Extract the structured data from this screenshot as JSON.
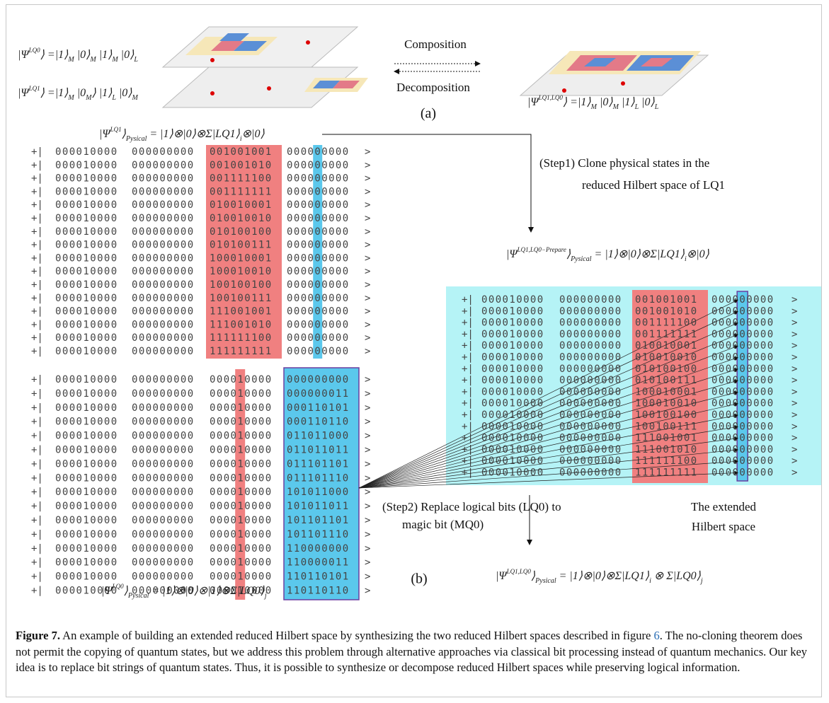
{
  "panel_a": {
    "state_lq0": [
      {
        "text": "|Ψ"
      },
      {
        "sup": "LQ0"
      },
      {
        "text": "⟩ =|1⟩"
      },
      {
        "sub": "M"
      },
      {
        "text": " |0⟩"
      },
      {
        "sub": "M"
      },
      {
        "text": " |1⟩"
      },
      {
        "sub": "M"
      },
      {
        "text": " |0⟩"
      },
      {
        "sub": "L"
      }
    ],
    "state_lq1": [
      {
        "text": "|Ψ"
      },
      {
        "sup": "LQ1"
      },
      {
        "text": "⟩ =|1⟩"
      },
      {
        "sub": "M"
      },
      {
        "text": " |0"
      },
      {
        "sub": "M"
      },
      {
        "text": "⟩ |1⟩"
      },
      {
        "sub": "L"
      },
      {
        "text": " |0⟩"
      },
      {
        "sub": "M"
      }
    ],
    "state_combined": [
      {
        "text": "|Ψ"
      },
      {
        "sup": "LQ1,LQ0"
      },
      {
        "text": "⟩ =|1⟩"
      },
      {
        "sub": "M"
      },
      {
        "text": " |0⟩"
      },
      {
        "sub": "M"
      },
      {
        "text": " |1⟩"
      },
      {
        "sub": "L"
      },
      {
        "text": " |0⟩"
      },
      {
        "sub": "L"
      }
    ],
    "composition": "Composition",
    "decomposition": "Decomposition",
    "label": "(a)"
  },
  "panel_b": {
    "state_lq1_physical": [
      {
        "text": "|Ψ"
      },
      {
        "sup": "LQ1"
      },
      {
        "text": "⟩"
      },
      {
        "sub": "Pysical"
      },
      {
        "text": " = |1⟩⊗|0⟩⊗Σ|LQ1⟩"
      },
      {
        "sub": "i"
      },
      {
        "text": "⊗|0⟩"
      }
    ],
    "step1": [
      "(Step1) Clone physical states in the",
      "reduced Hilbert space of LQ1"
    ],
    "state_prepare": [
      {
        "text": "|Ψ"
      },
      {
        "sup": "LQ1,LQ0−Prepare"
      },
      {
        "text": "⟩"
      },
      {
        "sub": "Pysical"
      },
      {
        "text": " = |1⟩⊗|0⟩⊗Σ|LQ1⟩"
      },
      {
        "sub": "i"
      },
      {
        "text": "⊗|0⟩"
      }
    ],
    "table_lq1": {
      "rows": [
        [
          "+|",
          "000010000",
          "000000000",
          "001001001",
          "000000000",
          ">"
        ],
        [
          "+|",
          "000010000",
          "000000000",
          "001001010",
          "000000000",
          ">"
        ],
        [
          "+|",
          "000010000",
          "000000000",
          "001111100",
          "000000000",
          ">"
        ],
        [
          "+|",
          "000010000",
          "000000000",
          "001111111",
          "000000000",
          ">"
        ],
        [
          "+|",
          "000010000",
          "000000000",
          "010010001",
          "000000000",
          ">"
        ],
        [
          "+|",
          "000010000",
          "000000000",
          "010010010",
          "000000000",
          ">"
        ],
        [
          "+|",
          "000010000",
          "000000000",
          "010100100",
          "000000000",
          ">"
        ],
        [
          "+|",
          "000010000",
          "000000000",
          "010100111",
          "000000000",
          ">"
        ],
        [
          "+|",
          "000010000",
          "000000000",
          "100010001",
          "000000000",
          ">"
        ],
        [
          "+|",
          "000010000",
          "000000000",
          "100010010",
          "000000000",
          ">"
        ],
        [
          "+|",
          "000010000",
          "000000000",
          "100100100",
          "000000000",
          ">"
        ],
        [
          "+|",
          "000010000",
          "000000000",
          "100100111",
          "000000000",
          ">"
        ],
        [
          "+|",
          "000010000",
          "000000000",
          "111001001",
          "000000000",
          ">"
        ],
        [
          "+|",
          "000010000",
          "000000000",
          "111001010",
          "000000000",
          ">"
        ],
        [
          "+|",
          "000010000",
          "000000000",
          "111111100",
          "000000000",
          ">"
        ],
        [
          "+|",
          "000010000",
          "000000000",
          "111111111",
          "000000000",
          ">"
        ]
      ]
    },
    "table_lq0": {
      "rows": [
        [
          "+|",
          "000010000",
          "000000000",
          "000010000",
          "000000000",
          ">"
        ],
        [
          "+|",
          "000010000",
          "000000000",
          "000010000",
          "000000011",
          ">"
        ],
        [
          "+|",
          "000010000",
          "000000000",
          "000010000",
          "000110101",
          ">"
        ],
        [
          "+|",
          "000010000",
          "000000000",
          "000010000",
          "000110110",
          ">"
        ],
        [
          "+|",
          "000010000",
          "000000000",
          "000010000",
          "011011000",
          ">"
        ],
        [
          "+|",
          "000010000",
          "000000000",
          "000010000",
          "011011011",
          ">"
        ],
        [
          "+|",
          "000010000",
          "000000000",
          "000010000",
          "011101101",
          ">"
        ],
        [
          "+|",
          "000010000",
          "000000000",
          "000010000",
          "011101110",
          ">"
        ],
        [
          "+|",
          "000010000",
          "000000000",
          "000010000",
          "101011000",
          ">"
        ],
        [
          "+|",
          "000010000",
          "000000000",
          "000010000",
          "101011011",
          ">"
        ],
        [
          "+|",
          "000010000",
          "000000000",
          "000010000",
          "101101101",
          ">"
        ],
        [
          "+|",
          "000010000",
          "000000000",
          "000010000",
          "101101110",
          ">"
        ],
        [
          "+|",
          "000010000",
          "000000000",
          "000010000",
          "110000000",
          ">"
        ],
        [
          "+|",
          "000010000",
          "000000000",
          "000010000",
          "110000011",
          ">"
        ],
        [
          "+|",
          "000010000",
          "000000000",
          "000010000",
          "110110101",
          ">"
        ],
        [
          "+|",
          "000010000",
          "000000000",
          "000010000",
          "110110110",
          ">"
        ]
      ]
    },
    "table_prepare": {
      "rows": [
        [
          "+|",
          "000010000",
          "000000000",
          "001001001",
          "000000000",
          ">"
        ],
        [
          "+|",
          "000010000",
          "000000000",
          "001001010",
          "000000000",
          ">"
        ],
        [
          "+|",
          "000010000",
          "000000000",
          "001111100",
          "000000000",
          ">"
        ],
        [
          "+|",
          "000010000",
          "000000000",
          "001111111",
          "000000000",
          ">"
        ],
        [
          "+|",
          "000010000",
          "000000000",
          "010010001",
          "000000000",
          ">"
        ],
        [
          "+|",
          "000010000",
          "000000000",
          "010010010",
          "000000000",
          ">"
        ],
        [
          "+|",
          "000010000",
          "000000000",
          "010100100",
          "000000000",
          ">"
        ],
        [
          "+|",
          "000010000",
          "000000000",
          "010100111",
          "000000000",
          ">"
        ],
        [
          "+|",
          "000010000",
          "000000000",
          "100010001",
          "000000000",
          ">"
        ],
        [
          "+|",
          "000010000",
          "000000000",
          "100010010",
          "000000000",
          ">"
        ],
        [
          "+|",
          "000010000",
          "000000000",
          "100100100",
          "000000000",
          ">"
        ],
        [
          "+|",
          "000010000",
          "000000000",
          "100100111",
          "000000000",
          ">"
        ],
        [
          "+|",
          "000010000",
          "000000000",
          "111001001",
          "000000000",
          ">"
        ],
        [
          "+|",
          "000010000",
          "000000000",
          "111001010",
          "000000000",
          ">"
        ],
        [
          "+|",
          "000010000",
          "000000000",
          "111111100",
          "000000000",
          ">"
        ],
        [
          "+|",
          "000010000",
          "000000000",
          "111111111",
          "000000000",
          ">"
        ]
      ]
    },
    "step2": [
      "(Step2) Replace logical bits (LQ0) to",
      "magic bit (MQ0)"
    ],
    "extended": [
      "The extended",
      "Hilbert space"
    ],
    "state_lq0_physical": [
      {
        "text": "|Ψ"
      },
      {
        "sup": "LQ0"
      },
      {
        "text": "⟩"
      },
      {
        "sub": "Pysical"
      },
      {
        "text": " = |1⟩⊗|0⟩⊗|1⟩⊗Σ|LQ0⟩"
      },
      {
        "sub": "j"
      }
    ],
    "state_combined_physical": [
      {
        "text": "|Ψ"
      },
      {
        "sup": "LQ1,LQ0"
      },
      {
        "text": "⟩"
      },
      {
        "sub": "Pysical"
      },
      {
        "text": " = |1⟩⊗|0⟩⊗Σ|LQ1⟩"
      },
      {
        "sub": "i"
      },
      {
        "text": " ⊗ Σ|LQ0⟩"
      },
      {
        "sub": "j"
      }
    ],
    "label": "(b)"
  },
  "caption": {
    "label": "Figure 7.",
    "text_before": " An example of building an extended reduced Hilbert space by synthesizing the two reduced Hilbert spaces described in figure ",
    "link": "6",
    "text_after": ". The no-cloning theorem does not permit the copying of quantum states, but we address this problem through alternative approaches via classical bit processing instead of quantum mechanics. Our key idea is to replace bit strings of quantum states. Thus, it is possible to synthesize or decompose reduced Hilbert spaces while preserving logical information."
  }
}
